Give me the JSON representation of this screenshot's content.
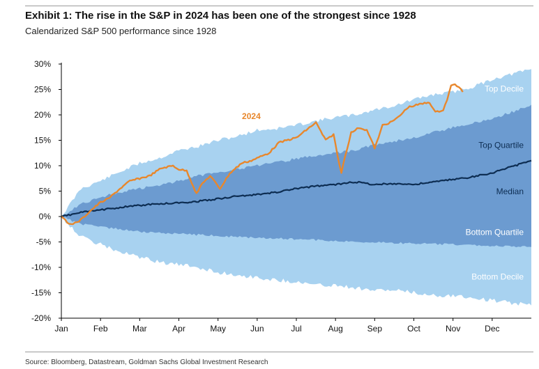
{
  "header": {
    "title": "Exhibit 1: The rise in the S&P in 2024 has been one of the strongest since 1928",
    "subtitle": "Calendarized S&P 500 performance since 1928"
  },
  "footer": {
    "source": "Source: Bloomberg, Datastream, Goldman Sachs Global Investment Research"
  },
  "chart_data": {
    "type": "area",
    "title": "Exhibit 1: The rise in the S&P in 2024 has been one of the strongest since 1928",
    "subtitle": "Calendarized S&P 500 performance since 1928",
    "xlabel": "",
    "ylabel": "",
    "ylim": [
      -20,
      30
    ],
    "yticks": [
      30,
      25,
      20,
      15,
      10,
      5,
      0,
      -5,
      -10,
      -15,
      -20
    ],
    "ytick_labels": [
      "30%",
      "25%",
      "20%",
      "15%",
      "10%",
      "5%",
      "0%",
      "-5%",
      "-10%",
      "-15%",
      "-20%"
    ],
    "xlim": [
      0,
      12
    ],
    "x_tick_labels": [
      "Jan",
      "Feb",
      "Mar",
      "Apr",
      "May",
      "Jun",
      "Jul",
      "Aug",
      "Sep",
      "Oct",
      "Nov",
      "Dec"
    ],
    "x_tick_positions": [
      0,
      1,
      2,
      3,
      4,
      5,
      6,
      7,
      8,
      9,
      10,
      11
    ],
    "grid": false,
    "x_months": [
      0,
      0.5,
      1,
      1.5,
      2,
      2.5,
      3,
      3.5,
      4,
      4.5,
      5,
      5.5,
      6,
      6.5,
      7,
      7.5,
      8,
      8.5,
      9,
      9.5,
      10,
      10.5,
      11,
      11.5,
      12
    ],
    "bands": [
      {
        "name": "Top Decile / Bottom Decile range",
        "labels": [
          "Top Decile",
          "Bottom Decile"
        ],
        "color": "#a8d2f0",
        "upper": [
          0,
          5.5,
          7.0,
          8.8,
          10.5,
          11.5,
          13.0,
          13.8,
          15.0,
          15.8,
          17.0,
          17.3,
          18.0,
          18.8,
          19.5,
          20.0,
          21.0,
          21.8,
          23.0,
          24.0,
          24.5,
          25.5,
          27.0,
          28.0,
          29.0
        ],
        "lower": [
          0,
          -4.0,
          -5.5,
          -7.0,
          -8.0,
          -9.0,
          -9.5,
          -10.0,
          -11.0,
          -11.5,
          -12.0,
          -12.5,
          -12.8,
          -13.5,
          -13.5,
          -14.0,
          -14.5,
          -14.5,
          -15.0,
          -15.5,
          -15.5,
          -16.0,
          -16.5,
          -17.0,
          -17.5
        ]
      },
      {
        "name": "Top Quartile / Bottom Quartile range",
        "labels": [
          "Top Quartile",
          "Bottom Quartile"
        ],
        "color": "#6c9bd0",
        "upper": [
          0,
          2.5,
          3.8,
          4.8,
          5.5,
          6.2,
          7.0,
          8.0,
          8.8,
          9.3,
          10.0,
          10.6,
          11.4,
          12.0,
          12.5,
          13.0,
          14.2,
          14.8,
          15.5,
          16.5,
          17.5,
          18.3,
          19.3,
          20.5,
          22.0
        ],
        "lower": [
          0,
          -1.5,
          -2.0,
          -2.5,
          -3.0,
          -3.2,
          -3.4,
          -3.6,
          -3.8,
          -4.0,
          -4.2,
          -4.3,
          -4.5,
          -4.6,
          -4.8,
          -5.0,
          -5.0,
          -5.2,
          -5.3,
          -5.4,
          -5.5,
          -5.6,
          -5.8,
          -5.9,
          -6.0
        ]
      }
    ],
    "series": [
      {
        "name": "Median",
        "color": "#0d2d52",
        "values": [
          0,
          0.8,
          1.3,
          1.8,
          2.2,
          2.5,
          2.7,
          3.0,
          3.5,
          4.0,
          4.3,
          4.8,
          5.5,
          6.0,
          6.3,
          6.8,
          6.3,
          6.5,
          6.3,
          6.8,
          7.3,
          7.8,
          8.6,
          9.8,
          11.0
        ]
      }
    ],
    "line_2024": {
      "name": "2024",
      "color": "#e8872c",
      "x": [
        0,
        0.2,
        0.4,
        0.55,
        0.75,
        1.0,
        1.2,
        1.5,
        1.75,
        2.0,
        2.25,
        2.55,
        2.85,
        3.0,
        3.2,
        3.45,
        3.6,
        3.8,
        4.05,
        4.3,
        4.6,
        4.85,
        5.0,
        5.3,
        5.55,
        5.75,
        6.0,
        6.25,
        6.5,
        6.75,
        6.95,
        7.05,
        7.15,
        7.25,
        7.4,
        7.6,
        7.8,
        8.0,
        8.1,
        8.2,
        8.4,
        8.6,
        8.85,
        9.1,
        9.4,
        9.55,
        9.75,
        9.85,
        9.95,
        10.05,
        10.15,
        10.25
      ],
      "values": [
        0,
        -1.5,
        -1.2,
        -0.3,
        1.2,
        2.8,
        3.5,
        5.5,
        7.0,
        7.5,
        8.0,
        9.5,
        10.0,
        9.3,
        9.0,
        4.5,
        6.5,
        8.0,
        5.5,
        8.5,
        10.5,
        11.0,
        11.5,
        12.5,
        14.5,
        15.0,
        15.5,
        17.0,
        18.5,
        15.0,
        16.2,
        12.0,
        8.5,
        12.0,
        16.5,
        17.5,
        17.0,
        13.5,
        15.5,
        18.0,
        18.5,
        19.5,
        21.5,
        22.0,
        22.5,
        20.5,
        21.0,
        23.0,
        25.7,
        26.0,
        25.5,
        24.5
      ]
    },
    "annotations": {
      "line_label": "2024",
      "top_decile": "Top Decile",
      "top_quartile": "Top Quartile",
      "median": "Median",
      "bottom_quartile": "Bottom Quartile",
      "bottom_decile": "Bottom Decile"
    },
    "colors": {
      "decile_band": "#a8d2f0",
      "quartile_band": "#6c9bd0",
      "median": "#0d2d52",
      "line_2024": "#e8872c",
      "axis": "#000000"
    }
  }
}
